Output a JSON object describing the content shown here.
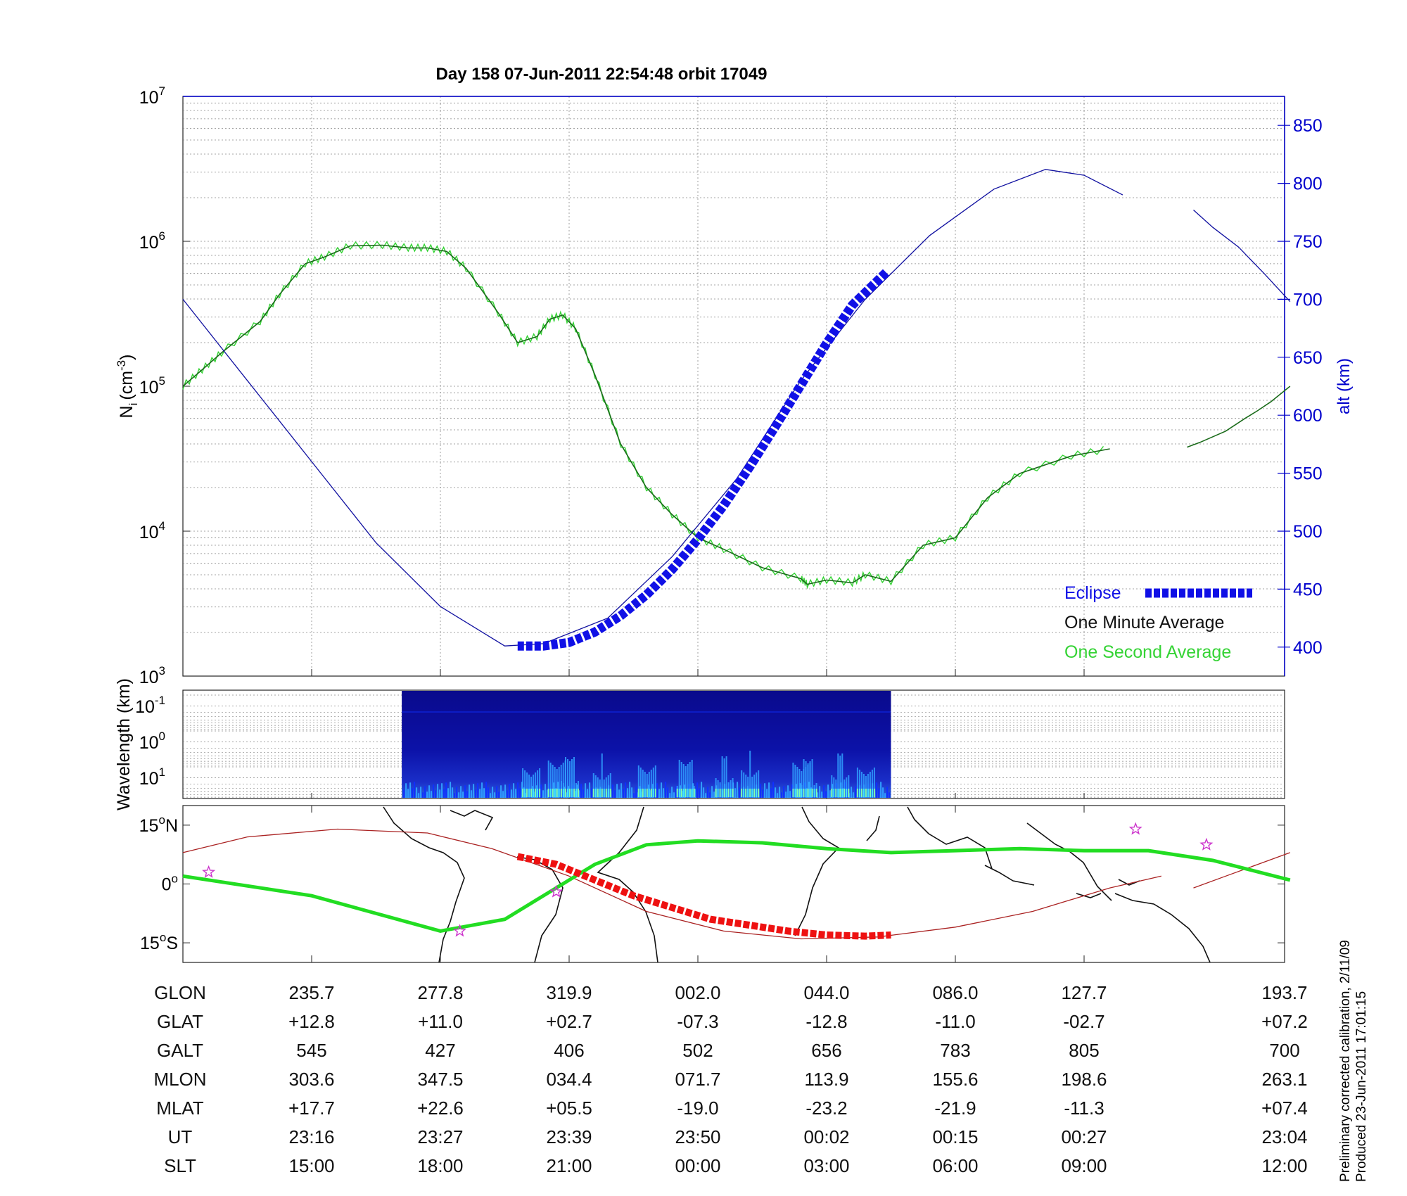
{
  "title": "Day 158  07-Jun-2011 22:54:48   orbit 17049",
  "colors": {
    "density": "#1a6b1a",
    "density_second": "#35d335",
    "altitude": "#1010a0",
    "eclipse": "#1010e6",
    "eclipse_map": "#ee1111",
    "track": "#22dd22",
    "magnetic_equator": "#aa2222",
    "stars": "#cc33cc",
    "right_axis": "#0000cc"
  },
  "chart_data": [
    {
      "type": "line",
      "panel": "ion-density-and-altitude",
      "ylabel": "N",
      "ylabel_sub": "i",
      "ylabel_unit": "(cm",
      "ylabel_sup": "-3",
      "ylabel_close": ")",
      "yscale": "log",
      "ylim": [
        1000,
        10000000
      ],
      "ytick_labels": [
        {
          "base": "10",
          "exp": "3"
        },
        {
          "base": "10",
          "exp": "4"
        },
        {
          "base": "10",
          "exp": "5"
        },
        {
          "base": "10",
          "exp": "6"
        },
        {
          "base": "10",
          "exp": "7"
        }
      ],
      "y2label": "alt (km)",
      "y2lim": [
        375,
        875
      ],
      "y2ticks": [
        "400",
        "450",
        "500",
        "550",
        "600",
        "650",
        "700",
        "750",
        "800",
        "850"
      ],
      "x_columns": 8,
      "grid": true,
      "legend_position": "bottom-right",
      "legend": [
        {
          "label": "Eclipse",
          "series": "eclipse"
        },
        {
          "label": "One Minute Average",
          "series": "density_minute"
        },
        {
          "label": "One Second Average",
          "series": "density_second"
        }
      ],
      "series": [
        {
          "id": "density_minute",
          "x": [
            0,
            0.15,
            0.3,
            0.6,
            0.75,
            0.95,
            1.1,
            1.3,
            1.55,
            1.75,
            1.9,
            2.05,
            2.2,
            2.45,
            2.6,
            2.75,
            2.85,
            2.95,
            3.05,
            3.2,
            3.4,
            3.6,
            3.8,
            4.0,
            4.2,
            4.5,
            4.8,
            4.85,
            5.0,
            5.2,
            5.3,
            5.5,
            5.75,
            6.0,
            6.25,
            6.5,
            6.9,
            7.2
          ],
          "y": [
            100000,
            130000,
            170000,
            280000,
            430000,
            700000,
            780000,
            930000,
            940000,
            900000,
            900000,
            850000,
            650000,
            320000,
            200000,
            220000,
            290000,
            310000,
            250000,
            120000,
            40000,
            20000,
            13000,
            9000,
            7500,
            5600,
            4700,
            4300,
            4600,
            4400,
            5000,
            4500,
            8000,
            9000,
            17000,
            25000,
            33000,
            37000
          ]
        },
        {
          "id": "density_minute_late",
          "x": [
            7.8,
            7.9,
            8.1,
            8.25,
            8.35,
            8.45,
            8.6
          ],
          "y": [
            38000,
            41000,
            49000,
            60000,
            68000,
            78000,
            100000
          ]
        },
        {
          "id": "altitude",
          "x": [
            0,
            0.5,
            1.0,
            1.5,
            2.0,
            2.5,
            2.8,
            3.3,
            3.8,
            4.3,
            4.8,
            5.3,
            5.8,
            6.3,
            6.7,
            7.0,
            7.3
          ],
          "y": [
            700,
            630,
            560,
            490,
            435,
            401,
            403,
            425,
            478,
            545,
            630,
            700,
            755,
            795,
            812,
            807,
            790
          ]
        },
        {
          "id": "altitude_late",
          "x": [
            7.85,
            8.0,
            8.2,
            8.4,
            8.6
          ],
          "y": [
            777,
            762,
            745,
            722,
            698
          ]
        },
        {
          "id": "eclipse",
          "x": [
            2.6,
            2.8,
            3.0,
            3.2,
            3.4,
            3.6,
            3.8,
            4.0,
            4.2,
            4.4,
            4.6,
            4.8,
            5.0,
            5.2,
            5.47
          ],
          "y": [
            401,
            401,
            404,
            413,
            427,
            445,
            467,
            493,
            522,
            555,
            590,
            626,
            662,
            695,
            724
          ]
        }
      ]
    },
    {
      "type": "heatmap",
      "panel": "wavelength-spectrogram",
      "ylabel": "Wavelength (km)",
      "yscale": "log",
      "ytick_labels": [
        {
          "base": "10",
          "exp": "-1"
        },
        {
          "base": "10",
          "exp": "0"
        },
        {
          "base": "10",
          "exp": "1"
        }
      ],
      "x_range": [
        1.7,
        5.5
      ],
      "bursts": [
        2.7,
        2.9,
        3.0,
        3.25,
        3.6,
        3.9,
        4.2,
        4.4,
        4.8,
        4.85,
        5.1,
        5.3
      ],
      "colormap": [
        "#00007f",
        "#0000c8",
        "#1030ff",
        "#30a0ff",
        "#40e8ff",
        "#80ffb0"
      ]
    },
    {
      "type": "line",
      "panel": "ground-track-map",
      "ylim": [
        -20,
        20
      ],
      "ytick_labels": [
        {
          "num": "15",
          "deg": "o",
          "hemi": "N",
          "lat": 15
        },
        {
          "num": "0",
          "deg": "o",
          "hemi": "",
          "lat": 0
        },
        {
          "num": "15",
          "deg": "o",
          "hemi": "S",
          "lat": -15
        }
      ],
      "series": [
        {
          "id": "track",
          "x": [
            0,
            1.0,
            2.0,
            2.5,
            3.2,
            3.6,
            4.0,
            4.5,
            5.0,
            5.5,
            6.0,
            6.5,
            7.0,
            7.5,
            8.0,
            8.6
          ],
          "y": [
            2,
            -3,
            -12,
            -9,
            5,
            10,
            11,
            10.5,
            9,
            8,
            8.5,
            9,
            8.5,
            8.5,
            6,
            1
          ]
        },
        {
          "id": "magnetic_equator",
          "x": [
            0,
            0.5,
            1.2,
            1.9,
            2.4,
            3.0,
            3.6,
            4.2,
            4.8,
            5.4,
            6.0,
            6.6,
            7.2,
            7.6
          ],
          "y": [
            8,
            12,
            14,
            13,
            9,
            2,
            -7,
            -12,
            -14,
            -13.5,
            -11,
            -7,
            -1,
            2
          ]
        },
        {
          "id": "magnetic_equator_late",
          "x": [
            7.85,
            8.1,
            8.35,
            8.6
          ],
          "y": [
            -1,
            2,
            5,
            8
          ]
        },
        {
          "id": "eclipse_map",
          "x": [
            2.6,
            2.9,
            3.2,
            3.5,
            3.8,
            4.1,
            4.4,
            4.7,
            5.0,
            5.3,
            5.5
          ],
          "y": [
            7,
            5,
            1,
            -3,
            -6,
            -9,
            -10.5,
            -12,
            -13,
            -13.3,
            -13
          ]
        }
      ],
      "stars": [
        {
          "x": 0.2,
          "y": 3
        },
        {
          "x": 2.15,
          "y": -12
        },
        {
          "x": 2.9,
          "y": -2
        },
        {
          "x": 7.4,
          "y": 14
        },
        {
          "x": 7.95,
          "y": 10
        }
      ]
    }
  ],
  "table": {
    "rows": [
      {
        "label": "GLON",
        "values": [
          "235.7",
          "277.8",
          "319.9",
          "002.0",
          "044.0",
          "086.0",
          "127.7",
          "193.7"
        ]
      },
      {
        "label": "GLAT",
        "values": [
          "+12.8",
          "+11.0",
          "+02.7",
          "-07.3",
          "-12.8",
          "-11.0",
          "-02.7",
          "+07.2"
        ]
      },
      {
        "label": "GALT",
        "values": [
          "545",
          "427",
          "406",
          "502",
          "656",
          "783",
          "805",
          "700"
        ]
      },
      {
        "label": "MLON",
        "values": [
          "303.6",
          "347.5",
          "034.4",
          "071.7",
          "113.9",
          "155.6",
          "198.6",
          "263.1"
        ]
      },
      {
        "label": "MLAT",
        "values": [
          "+17.7",
          "+22.6",
          "+05.5",
          "-19.0",
          "-23.2",
          "-21.9",
          "-11.3",
          "+07.4"
        ]
      },
      {
        "label": "UT",
        "values": [
          "23:16",
          "23:27",
          "23:39",
          "23:50",
          "00:02",
          "00:15",
          "00:27",
          "23:04"
        ]
      },
      {
        "label": "SLT",
        "values": [
          "15:00",
          "18:00",
          "21:00",
          "00:00",
          "03:00",
          "06:00",
          "09:00",
          "12:00"
        ]
      }
    ]
  },
  "footnote": {
    "line1": "Preliminary corrected calibration, 2/11/09",
    "line2": "Produced 23-Jun-2011 17:01:15"
  }
}
